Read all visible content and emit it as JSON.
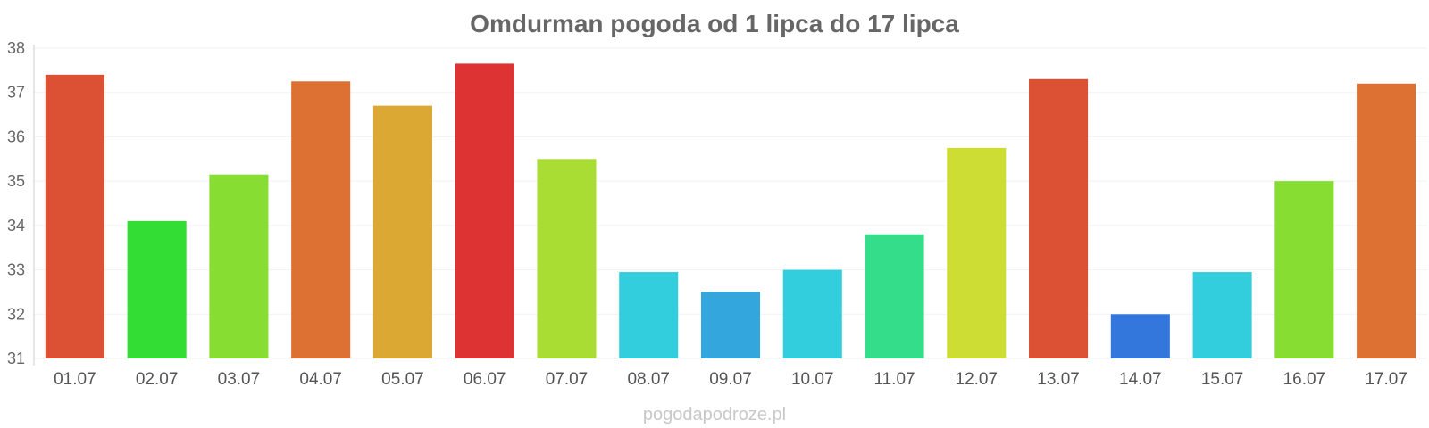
{
  "chart_data": {
    "type": "bar",
    "title": "Omdurman pogoda od 1 lipca do 17 lipca",
    "xlabel": "",
    "ylabel": "",
    "categories": [
      "01.07",
      "02.07",
      "03.07",
      "04.07",
      "05.07",
      "06.07",
      "07.07",
      "08.07",
      "09.07",
      "10.07",
      "11.07",
      "12.07",
      "13.07",
      "14.07",
      "15.07",
      "16.07",
      "17.07"
    ],
    "values": [
      37.4,
      34.1,
      35.15,
      37.25,
      36.7,
      37.65,
      35.5,
      32.95,
      32.5,
      33.0,
      33.8,
      35.75,
      37.3,
      32.0,
      32.95,
      35.0,
      37.2
    ],
    "colors": [
      "#dc5033",
      "#33dd33",
      "#88dd33",
      "#dd7033",
      "#dba933",
      "#dd3333",
      "#aadd33",
      "#33cedd",
      "#33a6dd",
      "#33cedd",
      "#33dd8a",
      "#cedd33",
      "#dc5033",
      "#3377dd",
      "#33cedd",
      "#88dd33",
      "#dd7033"
    ],
    "yticks": [
      31,
      32,
      33,
      34,
      35,
      36,
      37,
      38
    ],
    "ylim": [
      31,
      38
    ],
    "grid": true,
    "legend": "none"
  },
  "watermark": "pogodapodroze.pl"
}
